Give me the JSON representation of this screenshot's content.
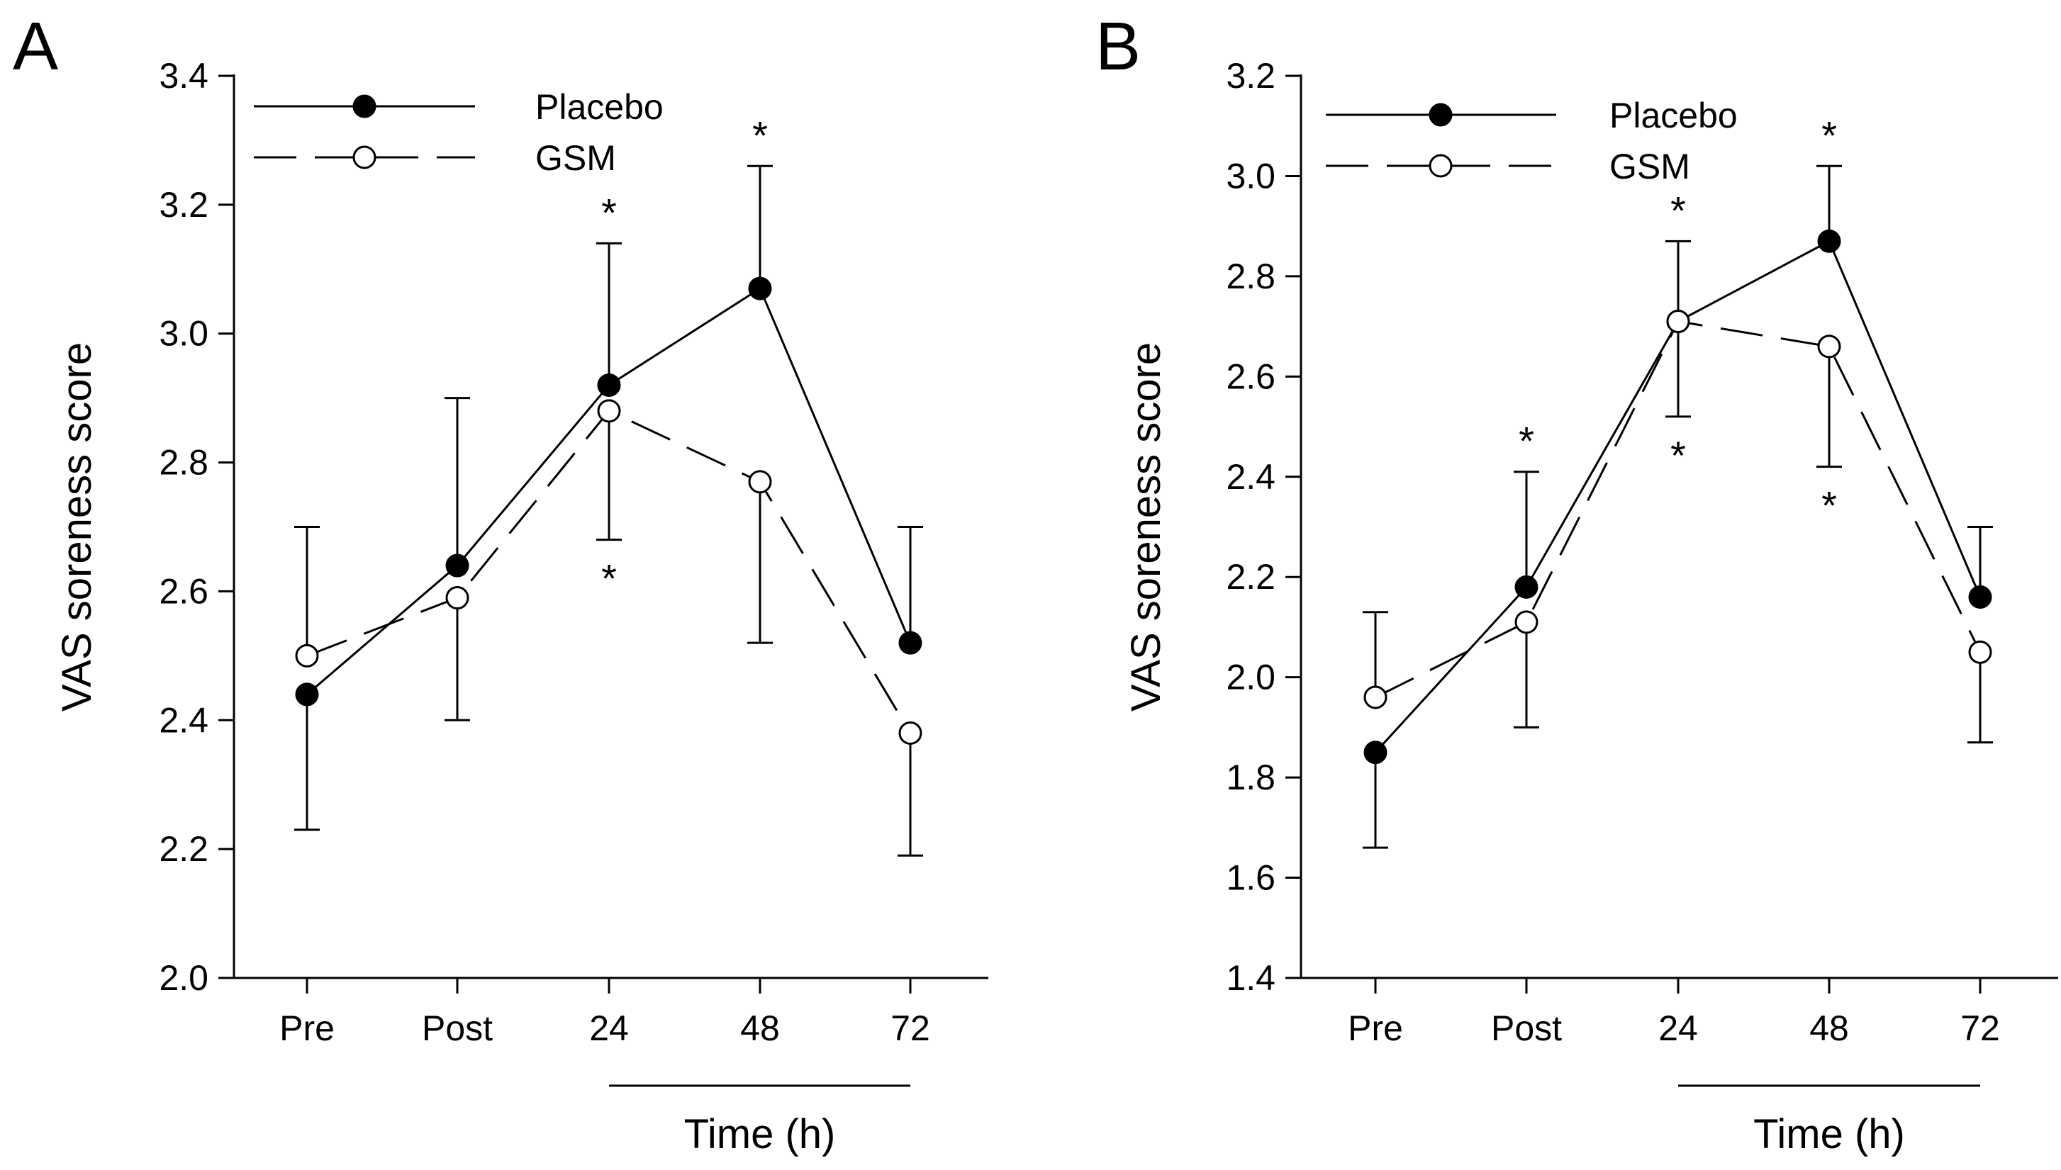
{
  "chart_data": [
    {
      "type": "line",
      "panel_label": "A",
      "ylabel": "VAS soreness score",
      "xlabel": "Time (h)",
      "categories": [
        "Pre",
        "Post",
        "24",
        "48",
        "72"
      ],
      "ylim": [
        2.0,
        3.4
      ],
      "yticks": [
        2.0,
        2.2,
        2.4,
        2.6,
        2.8,
        3.0,
        3.2,
        3.4
      ],
      "ytick_labels": [
        "2.0",
        "2.2",
        "2.4",
        "2.6",
        "2.8",
        "3.0",
        "3.2",
        "3.4"
      ],
      "legend_position": "top-left",
      "time_bracket_categories": [
        "24",
        "72"
      ],
      "series": [
        {
          "name": "Placebo",
          "marker": "filled-circle",
          "line": "solid",
          "values": [
            2.44,
            2.64,
            2.92,
            3.07,
            2.52
          ],
          "error": [
            0.21,
            0.26,
            0.22,
            0.19,
            0.18
          ],
          "error_direction": [
            "down",
            "up",
            "up",
            "up",
            "up"
          ]
        },
        {
          "name": "GSM",
          "marker": "open-circle",
          "line": "dashed",
          "values": [
            2.5,
            2.59,
            2.88,
            2.77,
            2.38
          ],
          "error": [
            0.2,
            0.19,
            0.2,
            0.25,
            0.19
          ],
          "error_direction": [
            "up",
            "down",
            "down",
            "down",
            "down"
          ]
        }
      ],
      "annotations": [
        {
          "text": "*",
          "category": "24",
          "series": "Placebo",
          "side": "above"
        },
        {
          "text": "*",
          "category": "48",
          "series": "Placebo",
          "side": "above"
        },
        {
          "text": "*",
          "category": "24",
          "series": "GSM",
          "side": "below"
        }
      ]
    },
    {
      "type": "line",
      "panel_label": "B",
      "ylabel": "VAS soreness score",
      "xlabel": "Time (h)",
      "categories": [
        "Pre",
        "Post",
        "24",
        "48",
        "72"
      ],
      "ylim": [
        1.4,
        3.2
      ],
      "yticks": [
        1.4,
        1.6,
        1.8,
        2.0,
        2.2,
        2.4,
        2.6,
        2.8,
        3.0,
        3.2
      ],
      "ytick_labels": [
        "1.4",
        "1.6",
        "1.8",
        "2.0",
        "2.2",
        "2.4",
        "2.6",
        "2.8",
        "3.0",
        "3.2"
      ],
      "legend_position": "top-left",
      "time_bracket_categories": [
        "24",
        "72"
      ],
      "series": [
        {
          "name": "Placebo",
          "marker": "filled-circle",
          "line": "solid",
          "values": [
            1.85,
            2.18,
            2.71,
            2.87,
            2.16
          ],
          "error": [
            0.19,
            0.23,
            0.16,
            0.15,
            0.14
          ],
          "error_direction": [
            "down",
            "up",
            "up",
            "up",
            "up"
          ]
        },
        {
          "name": "GSM",
          "marker": "open-circle",
          "line": "dashed",
          "values": [
            1.96,
            2.11,
            2.71,
            2.66,
            2.05
          ],
          "error": [
            0.17,
            0.21,
            0.19,
            0.24,
            0.18
          ],
          "error_direction": [
            "up",
            "down",
            "down",
            "down",
            "down"
          ]
        }
      ],
      "annotations": [
        {
          "text": "*",
          "category": "Post",
          "series": "Placebo",
          "side": "above"
        },
        {
          "text": "*",
          "category": "24",
          "series": "Placebo",
          "side": "above"
        },
        {
          "text": "*",
          "category": "48",
          "series": "Placebo",
          "side": "above"
        },
        {
          "text": "*",
          "category": "24",
          "series": "GSM",
          "side": "below"
        },
        {
          "text": "*",
          "category": "48",
          "series": "GSM",
          "side": "below"
        }
      ]
    }
  ]
}
